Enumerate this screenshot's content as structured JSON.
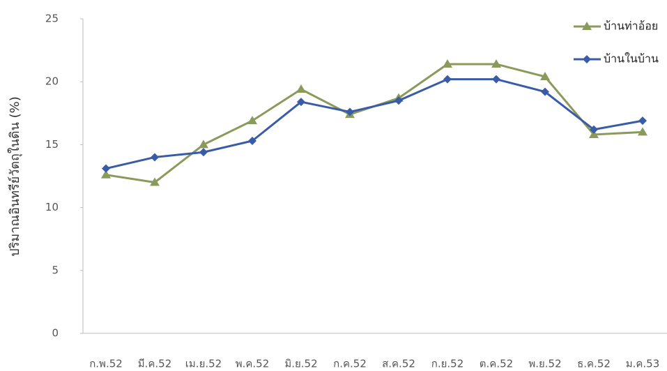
{
  "chart_data": {
    "type": "line",
    "y_label": "ปริมาณอินทรีย์วัตถุในดิน (%)",
    "categories": [
      "ก.พ.52",
      "มี.ค.52",
      "เม.ย.52",
      "พ.ค.52",
      "มิ.ย.52",
      "ก.ค.52",
      "ส.ค.52",
      "ก.ย.52",
      "ต.ค.52",
      "พ.ย.52",
      "ธ.ค.52",
      "ม.ค.53"
    ],
    "series": [
      {
        "name": "บ้านท่าอ้อย",
        "color": "#8a9a5b",
        "marker": "triangle",
        "values": [
          12.6,
          12.0,
          15.0,
          16.9,
          19.4,
          17.4,
          18.7,
          21.4,
          21.4,
          20.4,
          15.8,
          16.0
        ]
      },
      {
        "name": "บ้านในบ้าน",
        "color": "#3a5ca8",
        "marker": "diamond",
        "values": [
          13.1,
          14.0,
          14.4,
          15.3,
          18.4,
          17.6,
          18.5,
          20.2,
          20.2,
          19.2,
          16.2,
          16.9
        ]
      }
    ],
    "ylim": [
      0,
      25
    ],
    "yticks": [
      0,
      5,
      10,
      15,
      20,
      25
    ],
    "legend": "top-right"
  }
}
